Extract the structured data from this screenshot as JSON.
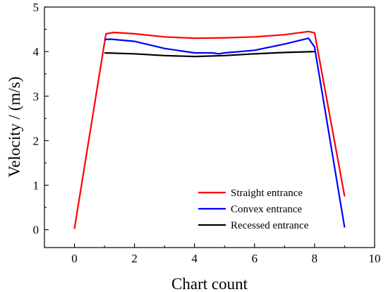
{
  "chart_data": {
    "type": "line",
    "xlabel": "Chart count",
    "ylabel": "Velocity / (m/s)",
    "xlim": [
      -1,
      10
    ],
    "ylim": [
      -0.4,
      5
    ],
    "x_ticks": [
      0,
      2,
      4,
      6,
      8,
      10
    ],
    "y_ticks": [
      0,
      1,
      2,
      3,
      4,
      5
    ],
    "x_tick_labels": [
      "0",
      "2",
      "4",
      "6",
      "8",
      "10"
    ],
    "y_tick_labels": [
      "0",
      "1",
      "2",
      "3",
      "4",
      "5"
    ],
    "grid": false,
    "legend_position": "bottom-right",
    "series": [
      {
        "name": "Straight entrance",
        "color": "#ff0000",
        "points": [
          [
            0,
            0.02
          ],
          [
            1.05,
            4.4
          ],
          [
            1.3,
            4.43
          ],
          [
            2,
            4.4
          ],
          [
            3,
            4.33
          ],
          [
            4,
            4.3
          ],
          [
            5,
            4.31
          ],
          [
            6,
            4.33
          ],
          [
            7,
            4.38
          ],
          [
            7.8,
            4.45
          ],
          [
            8.0,
            4.42
          ],
          [
            9,
            0.75
          ]
        ]
      },
      {
        "name": "Convex entrance",
        "color": "#0000ff",
        "points": [
          [
            1,
            4.27
          ],
          [
            1.2,
            4.28
          ],
          [
            2,
            4.23
          ],
          [
            3,
            4.07
          ],
          [
            4,
            3.97
          ],
          [
            4.6,
            3.97
          ],
          [
            4.8,
            3.95
          ],
          [
            5,
            3.97
          ],
          [
            6,
            4.03
          ],
          [
            7,
            4.17
          ],
          [
            7.8,
            4.3
          ],
          [
            8.0,
            4.1
          ],
          [
            9,
            0.05
          ]
        ]
      },
      {
        "name": "Recessed entrance",
        "color": "#000000",
        "points": [
          [
            1,
            3.97
          ],
          [
            2,
            3.95
          ],
          [
            3,
            3.91
          ],
          [
            4,
            3.89
          ],
          [
            5,
            3.91
          ],
          [
            6,
            3.95
          ],
          [
            7,
            3.98
          ],
          [
            8,
            4.0
          ]
        ]
      }
    ]
  }
}
